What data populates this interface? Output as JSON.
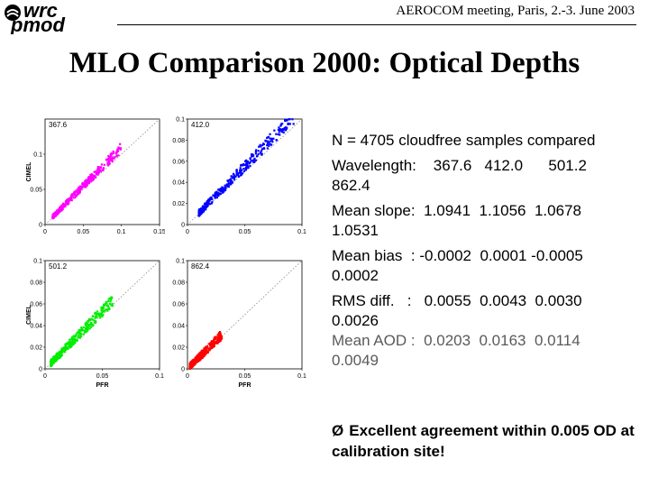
{
  "header": {
    "logo_text": "pmod/wrc",
    "meeting": "AEROCOM meeting, Paris, 2.-3. June 2003"
  },
  "title": "MLO Comparison 2000: Optical Depths",
  "stats": {
    "samples": "N = 4705 cloudfree samples compared",
    "wavelength_label": "Wavelength:",
    "wavelength_values": "367.6   412.0      501.2",
    "wavelength_tail": "862.4",
    "slope_label": "Mean slope:",
    "slope_values": "1.0941  1.1056  1.0678",
    "slope_tail": "1.0531",
    "bias_label": "Mean bias  :",
    "bias_values": "-0.0002  0.0001 -0.0005",
    "bias_tail": "0.0002",
    "rms_label": "RMS diff.   :",
    "rms_values": "0.0055  0.0043  0.0030",
    "rms_tail": "0.0026",
    "aod_label": "Mean AOD :",
    "aod_values": "0.0203  0.0163  0.0114",
    "aod_tail": "0.0049"
  },
  "conclusion": {
    "arrow": "Ø",
    "text": "Excellent agreement within 0.005 OD at calibration site!"
  },
  "chart_data": [
    {
      "type": "scatter",
      "label": "367.6",
      "xlabel": "",
      "ylabel": "CIMEL",
      "xlim": [
        0,
        0.15
      ],
      "ylim": [
        0,
        0.15
      ],
      "xticks": [
        "0",
        "0.05",
        "0.1",
        "0.15"
      ],
      "yticks": [
        "0",
        "0.05",
        "0.1"
      ],
      "color": "#ff00ff",
      "points": {
        "x_range": [
          0.01,
          0.1
        ],
        "slope": 1.0941
      }
    },
    {
      "type": "scatter",
      "label": "412.0",
      "xlabel": "",
      "ylabel": "",
      "xlim": [
        0,
        0.1
      ],
      "ylim": [
        0,
        0.1
      ],
      "xticks": [
        "0",
        "0.05",
        "0.1"
      ],
      "yticks": [
        "0",
        "0.02",
        "0.04",
        "0.06",
        "0.08",
        "0.1"
      ],
      "color": "#0000ff",
      "points": {
        "x_range": [
          0.01,
          0.095
        ],
        "slope": 1.1056
      }
    },
    {
      "type": "scatter",
      "label": "501.2",
      "xlabel": "PFR",
      "ylabel": "CIMEL",
      "xlim": [
        0,
        0.1
      ],
      "ylim": [
        0,
        0.1
      ],
      "xticks": [
        "0",
        "0.05",
        "0.1"
      ],
      "yticks": [
        "0",
        "0.02",
        "0.04",
        "0.06",
        "0.08",
        "0.1"
      ],
      "color": "#00ee00",
      "points": {
        "x_range": [
          0.005,
          0.06
        ],
        "slope": 1.0678
      }
    },
    {
      "type": "scatter",
      "label": "862.4",
      "xlabel": "PFR",
      "ylabel": "",
      "xlim": [
        0,
        0.1
      ],
      "ylim": [
        0,
        0.1
      ],
      "xticks": [
        "0",
        "0.05",
        "0.1"
      ],
      "yticks": [
        "0",
        "0.02",
        "0.04",
        "0.06",
        "0.08",
        "0.1"
      ],
      "color": "#ff0000",
      "points": {
        "x_range": [
          0.002,
          0.03
        ],
        "slope": 1.0531
      }
    }
  ]
}
